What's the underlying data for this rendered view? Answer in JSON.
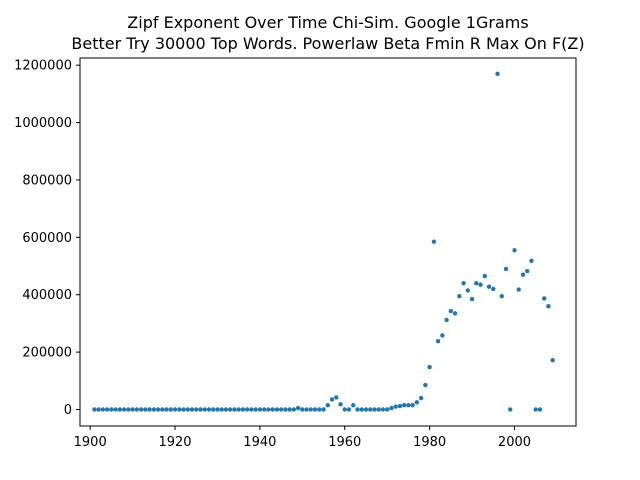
{
  "chart_data": {
    "type": "scatter",
    "title_lines": [
      "Zipf Exponent Over Time Chi-Sim. Google 1Grams",
      "Better Try 30000 Top Words. Powerlaw Beta Fmin R Max On F(Z)"
    ],
    "xlabel": "",
    "ylabel": "",
    "xlim": [
      1897.6,
      2014.5
    ],
    "ylim": [
      -57500,
      1225000
    ],
    "x_ticks": [
      1900,
      1920,
      1940,
      1960,
      1980,
      2000
    ],
    "x_tick_labels": [
      "1900",
      "1920",
      "1940",
      "1960",
      "1980",
      "2000"
    ],
    "y_ticks": [
      0,
      200000,
      400000,
      600000,
      800000,
      1000000,
      1200000
    ],
    "y_tick_labels": [
      "0",
      "200000",
      "400000",
      "600000",
      "800000",
      "1000000",
      "1200000"
    ],
    "grid": false,
    "marker_color": "#1f77b4",
    "x": [
      1901,
      1902,
      1903,
      1904,
      1905,
      1906,
      1907,
      1908,
      1909,
      1910,
      1911,
      1912,
      1913,
      1914,
      1915,
      1916,
      1917,
      1918,
      1919,
      1920,
      1921,
      1922,
      1923,
      1924,
      1925,
      1926,
      1927,
      1928,
      1929,
      1930,
      1931,
      1932,
      1933,
      1934,
      1935,
      1936,
      1937,
      1938,
      1939,
      1940,
      1941,
      1942,
      1943,
      1944,
      1945,
      1946,
      1947,
      1948,
      1949,
      1950,
      1951,
      1952,
      1953,
      1954,
      1955,
      1956,
      1957,
      1958,
      1959,
      1960,
      1961,
      1962,
      1963,
      1964,
      1965,
      1966,
      1967,
      1968,
      1969,
      1970,
      1971,
      1972,
      1973,
      1974,
      1975,
      1976,
      1977,
      1978,
      1979,
      1980,
      1981,
      1982,
      1983,
      1984,
      1985,
      1986,
      1987,
      1988,
      1989,
      1990,
      1991,
      1992,
      1993,
      1994,
      1995,
      1996,
      1997,
      1998,
      1999,
      2000,
      2001,
      2002,
      2003,
      2004,
      2005,
      2006,
      2007,
      2008,
      2009
    ],
    "y": [
      0,
      0,
      0,
      0,
      0,
      0,
      0,
      0,
      0,
      0,
      0,
      0,
      0,
      0,
      0,
      0,
      0,
      0,
      0,
      0,
      0,
      0,
      0,
      0,
      0,
      0,
      0,
      0,
      0,
      0,
      0,
      0,
      0,
      0,
      0,
      0,
      0,
      0,
      0,
      0,
      0,
      0,
      0,
      0,
      0,
      0,
      0,
      0,
      5000,
      0,
      0,
      0,
      0,
      0,
      0,
      15000,
      35000,
      42000,
      18000,
      0,
      0,
      15000,
      0,
      0,
      0,
      0,
      0,
      0,
      0,
      0,
      5000,
      10000,
      12000,
      15000,
      15000,
      15000,
      25000,
      40000,
      85000,
      148000,
      585000,
      238000,
      258000,
      312000,
      343000,
      335000,
      395000,
      440000,
      415000,
      385000,
      440000,
      435000,
      465000,
      428000,
      420000,
      1170000,
      395000,
      490000,
      0,
      555000,
      418000,
      470000,
      482000,
      518000,
      0,
      0,
      387000,
      360000,
      172000
    ]
  }
}
